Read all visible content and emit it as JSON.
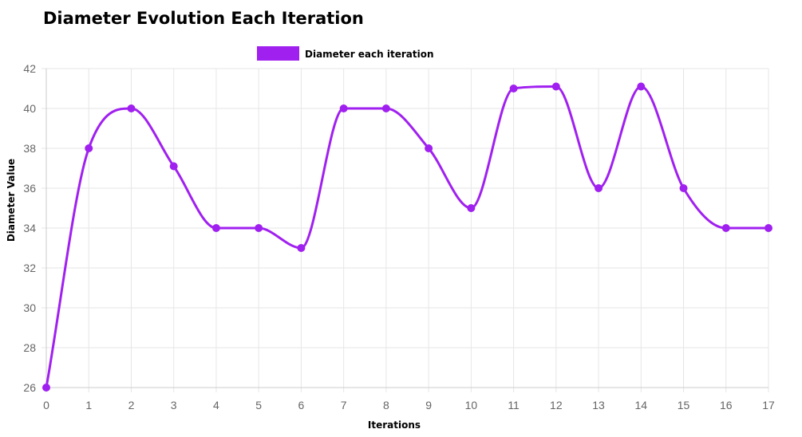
{
  "chart_data": {
    "type": "line",
    "title": "Diameter Evolution Each Iteration",
    "xlabel": "Iterations",
    "ylabel": "Diameter Value",
    "categories": [
      "0",
      "1",
      "2",
      "3",
      "4",
      "5",
      "6",
      "7",
      "8",
      "9",
      "10",
      "11",
      "12",
      "13",
      "14",
      "15",
      "16",
      "17"
    ],
    "ylim": [
      26,
      42
    ],
    "yticks": [
      26,
      28,
      30,
      32,
      34,
      36,
      38,
      40,
      42
    ],
    "series": [
      {
        "name": "Diameter each iteration",
        "color": "#a020f0",
        "values": [
          26,
          38,
          40,
          37.1,
          34,
          34,
          33,
          40,
          40,
          38,
          35,
          41,
          41.1,
          36,
          41.1,
          36,
          34,
          34
        ]
      }
    ],
    "legend_position": "top-center",
    "grid": true,
    "smooth": true
  }
}
